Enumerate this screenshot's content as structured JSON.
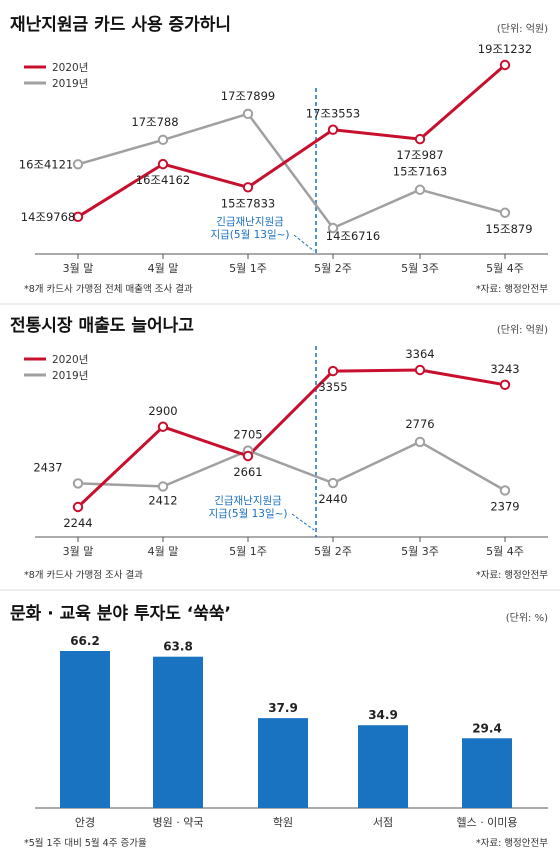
{
  "colors": {
    "y2020": "#c8102e",
    "y2019": "#a0a0a0",
    "bar": "#1a73c1",
    "divider": "#1a6fc0"
  },
  "chart_data": [
    {
      "type": "line",
      "title": "재난지원금 카드 사용 증가하니",
      "unit": "(단위: 억원)",
      "categories": [
        "3월 말",
        "4월 말",
        "5월 1주",
        "5월 2주",
        "5월 3주",
        "5월 4주"
      ],
      "series": [
        {
          "name": "2020년",
          "values": [
            149768,
            164162,
            157833,
            173553,
            170987,
            191232
          ],
          "labels": [
            "14조9768",
            "16조4162",
            "15조7833",
            "17조3553",
            "17조987",
            "19조1232"
          ]
        },
        {
          "name": "2019년",
          "values": [
            164121,
            170788,
            177899,
            146716,
            157163,
            150879
          ],
          "labels": [
            "16조4121",
            "17조788",
            "17조7899",
            "14조6716",
            "15조7163",
            "15조879"
          ]
        }
      ],
      "annotation": [
        "긴급재난지원금",
        "지급(5월 13일~)"
      ],
      "note": "*8개 카드사 가맹점 전체 매출액 조사 결과",
      "source": "*자료: 행정안전부"
    },
    {
      "type": "line",
      "title": "전통시장 매출도 늘어나고",
      "unit": "(단위: 억원)",
      "categories": [
        "3월 말",
        "4월 말",
        "5월 1주",
        "5월 2주",
        "5월 3주",
        "5월 4주"
      ],
      "series": [
        {
          "name": "2020년",
          "values": [
            2244,
            2900,
            2661,
            3355,
            3364,
            3243
          ],
          "labels": [
            "2244",
            "2900",
            "2661",
            "3355",
            "3364",
            "3243"
          ]
        },
        {
          "name": "2019년",
          "values": [
            2437,
            2412,
            2705,
            2440,
            2776,
            2379
          ],
          "labels": [
            "2437",
            "2412",
            "2705",
            "2440",
            "2776",
            "2379"
          ]
        }
      ],
      "annotation": [
        "긴급재난지원금",
        "지급(5월 13일~)"
      ],
      "note": "*8개 카드사 가맹점 조사 결과",
      "source": "*자료: 행정안전부"
    },
    {
      "type": "bar",
      "title": "문화 · 교육 분야 투자도 ‘쑥쑥’",
      "unit": "(단위: %)",
      "categories": [
        "안경",
        "병원 · 약국",
        "학원",
        "서점",
        "헬스 · 이미용"
      ],
      "values": [
        66.2,
        63.8,
        37.9,
        34.9,
        29.4
      ],
      "labels": [
        "66.2",
        "63.8",
        "37.9",
        "34.9",
        "29.4"
      ],
      "note": "*5월 1주 대비 5월 4주 증가율",
      "source": "*자료: 행정안전부"
    }
  ]
}
